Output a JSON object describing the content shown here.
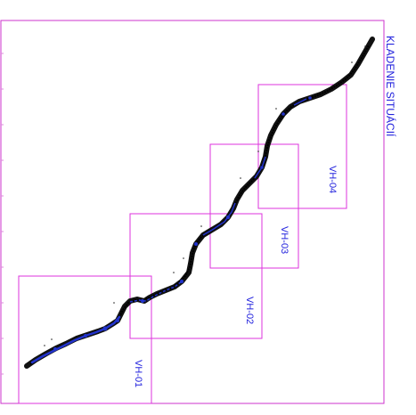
{
  "title": "KLADENIE SITUÁCIÍ",
  "sheets": [
    {
      "label": "VH-01"
    },
    {
      "label": "VH-02"
    },
    {
      "label": "VH-03"
    },
    {
      "label": "VH-04"
    }
  ],
  "colors": {
    "frame": "#cc33cc",
    "sheet_border": "#dd33dd",
    "label": "#2222dd",
    "alignment": "#111111",
    "detail": "#2233cc",
    "grid_tick": "#dd88dd"
  }
}
